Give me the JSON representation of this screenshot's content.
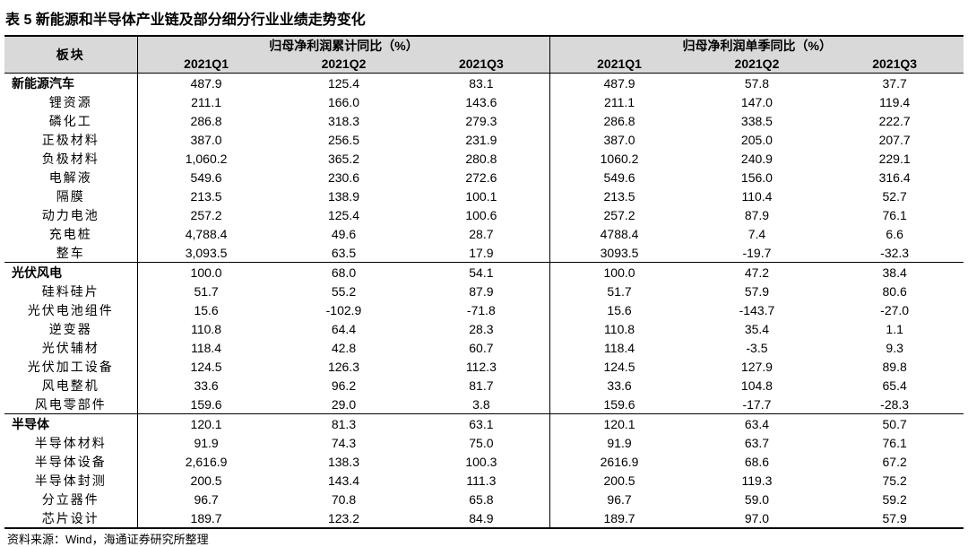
{
  "title": "表 5 新能源和半导体产业链及部分细分行业业绩走势变化",
  "table": {
    "header": {
      "first": "板块",
      "groups": [
        "归母净利润累计同比（%）",
        "归母净利润单季同比（%）"
      ],
      "columns": [
        "2021Q1",
        "2021Q2",
        "2021Q3",
        "2021Q1",
        "2021Q2",
        "2021Q3"
      ]
    },
    "sections": [
      {
        "name": "新能源汽车",
        "values": [
          "487.9",
          "125.4",
          "83.1",
          "487.9",
          "57.8",
          "37.7"
        ],
        "rows": [
          [
            "锂资源",
            "211.1",
            "166.0",
            "143.6",
            "211.1",
            "147.0",
            "119.4"
          ],
          [
            "磷化工",
            "286.8",
            "318.3",
            "279.3",
            "286.8",
            "338.5",
            "222.7"
          ],
          [
            "正极材料",
            "387.0",
            "256.5",
            "231.9",
            "387.0",
            "205.0",
            "207.7"
          ],
          [
            "负极材料",
            "1,060.2",
            "365.2",
            "280.8",
            "1060.2",
            "240.9",
            "229.1"
          ],
          [
            "电解液",
            "549.6",
            "230.6",
            "272.6",
            "549.6",
            "156.0",
            "316.4"
          ],
          [
            "隔膜",
            "213.5",
            "138.9",
            "100.1",
            "213.5",
            "110.4",
            "52.7"
          ],
          [
            "动力电池",
            "257.2",
            "125.4",
            "100.6",
            "257.2",
            "87.9",
            "76.1"
          ],
          [
            "充电桩",
            "4,788.4",
            "49.6",
            "28.7",
            "4788.4",
            "7.4",
            "6.6"
          ],
          [
            "整车",
            "3,093.5",
            "63.5",
            "17.9",
            "3093.5",
            "-19.7",
            "-32.3"
          ]
        ]
      },
      {
        "name": "光伏风电",
        "values": [
          "100.0",
          "68.0",
          "54.1",
          "100.0",
          "47.2",
          "38.4"
        ],
        "rows": [
          [
            "硅料硅片",
            "51.7",
            "55.2",
            "87.9",
            "51.7",
            "57.9",
            "80.6"
          ],
          [
            "光伏电池组件",
            "15.6",
            "-102.9",
            "-71.8",
            "15.6",
            "-143.7",
            "-27.0"
          ],
          [
            "逆变器",
            "110.8",
            "64.4",
            "28.3",
            "110.8",
            "35.4",
            "1.1"
          ],
          [
            "光伏辅材",
            "118.4",
            "42.8",
            "60.7",
            "118.4",
            "-3.5",
            "9.3"
          ],
          [
            "光伏加工设备",
            "124.5",
            "126.3",
            "112.3",
            "124.5",
            "127.9",
            "89.8"
          ],
          [
            "风电整机",
            "33.6",
            "96.2",
            "81.7",
            "33.6",
            "104.8",
            "65.4"
          ],
          [
            "风电零部件",
            "159.6",
            "29.0",
            "3.8",
            "159.6",
            "-17.7",
            "-28.3"
          ]
        ]
      },
      {
        "name": "半导体",
        "values": [
          "120.1",
          "81.3",
          "63.1",
          "120.1",
          "63.4",
          "50.7"
        ],
        "rows": [
          [
            "半导体材料",
            "91.9",
            "74.3",
            "75.0",
            "91.9",
            "63.7",
            "76.1"
          ],
          [
            "半导体设备",
            "2,616.9",
            "138.3",
            "100.3",
            "2616.9",
            "68.6",
            "67.2"
          ],
          [
            "半导体封测",
            "200.5",
            "143.4",
            "111.3",
            "200.5",
            "119.3",
            "75.2"
          ],
          [
            "分立器件",
            "96.7",
            "70.8",
            "65.8",
            "96.7",
            "59.0",
            "59.2"
          ],
          [
            "芯片设计",
            "189.7",
            "123.2",
            "84.9",
            "189.7",
            "97.0",
            "57.9"
          ]
        ]
      }
    ]
  },
  "source": "资料来源：Wind，海通证券研究所整理"
}
